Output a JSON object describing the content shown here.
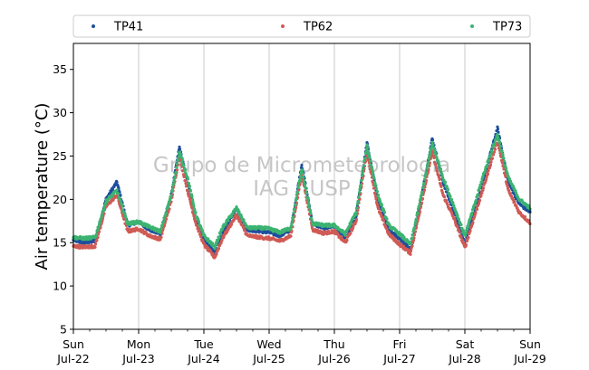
{
  "chart_data": {
    "type": "scatter",
    "title": "",
    "xlabel": "",
    "ylabel": "Air temperature (°C)",
    "ylim": [
      5,
      38
    ],
    "xlim": [
      "2018-07-22",
      "2018-07-29"
    ],
    "yticks": [
      5,
      10,
      15,
      20,
      25,
      30,
      35
    ],
    "xticks": [
      {
        "day": "Sun",
        "date": "Jul-22"
      },
      {
        "day": "Mon",
        "date": "Jul-23"
      },
      {
        "day": "Tue",
        "date": "Jul-24"
      },
      {
        "day": "Wed",
        "date": "Jul-25"
      },
      {
        "day": "Thu",
        "date": "Jul-26"
      },
      {
        "day": "Fri",
        "date": "Jul-27"
      },
      {
        "day": "Sat",
        "date": "Jul-28"
      },
      {
        "day": "Sun",
        "date": "Jul-29"
      }
    ],
    "grid": "vertical",
    "legend": "top",
    "watermark": [
      "Grupo de Micrometeorologia",
      "IAG / USP"
    ],
    "series": [
      {
        "name": "TP41",
        "color": "#1f4e9c",
        "x": [
          "2018-07-22 00:00",
          "2018-07-22 04:00",
          "2018-07-22 08:00",
          "2018-07-22 12:00",
          "2018-07-22 16:00",
          "2018-07-22 20:00",
          "2018-07-23 00:00",
          "2018-07-23 04:00",
          "2018-07-23 08:00",
          "2018-07-23 12:00",
          "2018-07-23 15:00",
          "2018-07-23 18:00",
          "2018-07-23 21:00",
          "2018-07-24 00:00",
          "2018-07-24 04:00",
          "2018-07-24 07:00",
          "2018-07-24 12:00",
          "2018-07-24 16:00",
          "2018-07-24 21:00",
          "2018-07-25 00:00",
          "2018-07-25 04:00",
          "2018-07-25 08:00",
          "2018-07-25 12:00",
          "2018-07-25 16:00",
          "2018-07-25 20:00",
          "2018-07-26 00:00",
          "2018-07-26 04:00",
          "2018-07-26 08:00",
          "2018-07-26 12:00",
          "2018-07-26 16:00",
          "2018-07-26 20:00",
          "2018-07-27 00:00",
          "2018-07-27 04:00",
          "2018-07-27 07:00",
          "2018-07-27 12:00",
          "2018-07-27 16:00",
          "2018-07-27 20:00",
          "2018-07-28 00:00",
          "2018-07-28 04:00",
          "2018-07-28 07:00",
          "2018-07-28 12:00",
          "2018-07-28 16:00",
          "2018-07-28 20:00",
          "2018-07-29 00:00"
        ],
        "y": [
          15.3,
          15.0,
          15.2,
          20.0,
          22.0,
          17.0,
          17.4,
          16.5,
          16.0,
          20.5,
          26.0,
          22.0,
          18.0,
          15.5,
          13.8,
          16.2,
          19.0,
          16.5,
          16.3,
          16.2,
          15.8,
          16.5,
          24.0,
          17.2,
          16.7,
          16.9,
          15.5,
          18.0,
          26.5,
          20.0,
          16.5,
          15.5,
          14.2,
          18.5,
          27.0,
          22.0,
          18.5,
          14.8,
          19.0,
          22.5,
          28.2,
          22.0,
          19.5,
          18.5
        ]
      },
      {
        "name": "TP62",
        "color": "#d05a55",
        "x": [
          "2018-07-22 00:00",
          "2018-07-22 04:00",
          "2018-07-22 08:00",
          "2018-07-22 12:00",
          "2018-07-22 16:00",
          "2018-07-22 20:00",
          "2018-07-23 00:00",
          "2018-07-23 04:00",
          "2018-07-23 08:00",
          "2018-07-23 12:00",
          "2018-07-23 15:00",
          "2018-07-23 18:00",
          "2018-07-23 21:00",
          "2018-07-24 00:00",
          "2018-07-24 04:00",
          "2018-07-24 07:00",
          "2018-07-24 12:00",
          "2018-07-24 16:00",
          "2018-07-24 21:00",
          "2018-07-25 00:00",
          "2018-07-25 04:00",
          "2018-07-25 08:00",
          "2018-07-25 12:00",
          "2018-07-25 16:00",
          "2018-07-25 20:00",
          "2018-07-26 00:00",
          "2018-07-26 04:00",
          "2018-07-26 08:00",
          "2018-07-26 12:00",
          "2018-07-26 16:00",
          "2018-07-26 20:00",
          "2018-07-27 00:00",
          "2018-07-27 04:00",
          "2018-07-27 07:00",
          "2018-07-27 12:00",
          "2018-07-27 16:00",
          "2018-07-27 20:00",
          "2018-07-28 00:00",
          "2018-07-28 04:00",
          "2018-07-28 07:00",
          "2018-07-28 12:00",
          "2018-07-28 16:00",
          "2018-07-28 20:00",
          "2018-07-29 00:00"
        ],
        "y": [
          14.6,
          14.5,
          14.6,
          19.2,
          20.5,
          16.3,
          16.6,
          15.8,
          15.4,
          19.8,
          25.0,
          21.0,
          17.3,
          14.8,
          13.3,
          15.6,
          18.2,
          15.8,
          15.6,
          15.5,
          15.2,
          15.8,
          23.0,
          16.5,
          16.1,
          16.3,
          15.0,
          17.5,
          25.5,
          19.0,
          16.0,
          14.8,
          13.8,
          18.0,
          25.5,
          20.5,
          17.8,
          14.4,
          18.5,
          21.5,
          26.8,
          21.0,
          18.5,
          17.3
        ]
      },
      {
        "name": "TP73",
        "color": "#3cb371",
        "x": [
          "2018-07-22 00:00",
          "2018-07-22 04:00",
          "2018-07-22 08:00",
          "2018-07-22 12:00",
          "2018-07-22 16:00",
          "2018-07-22 20:00",
          "2018-07-23 00:00",
          "2018-07-23 04:00",
          "2018-07-23 08:00",
          "2018-07-23 12:00",
          "2018-07-23 15:00",
          "2018-07-23 18:00",
          "2018-07-23 21:00",
          "2018-07-24 00:00",
          "2018-07-24 04:00",
          "2018-07-24 07:00",
          "2018-07-24 12:00",
          "2018-07-24 16:00",
          "2018-07-24 21:00",
          "2018-07-25 00:00",
          "2018-07-25 04:00",
          "2018-07-25 08:00",
          "2018-07-25 12:00",
          "2018-07-25 16:00",
          "2018-07-25 20:00",
          "2018-07-26 00:00",
          "2018-07-26 04:00",
          "2018-07-26 08:00",
          "2018-07-26 12:00",
          "2018-07-26 16:00",
          "2018-07-26 20:00",
          "2018-07-27 00:00",
          "2018-07-27 04:00",
          "2018-07-27 07:00",
          "2018-07-27 12:00",
          "2018-07-27 16:00",
          "2018-07-27 20:00",
          "2018-07-28 00:00",
          "2018-07-28 04:00",
          "2018-07-28 07:00",
          "2018-07-28 12:00",
          "2018-07-28 16:00",
          "2018-07-28 20:00",
          "2018-07-29 00:00"
        ],
        "y": [
          15.6,
          15.5,
          15.6,
          19.8,
          21.0,
          17.2,
          17.4,
          16.8,
          16.3,
          20.5,
          25.5,
          22.5,
          18.3,
          15.8,
          14.5,
          16.8,
          19.0,
          16.7,
          16.7,
          16.6,
          16.2,
          16.7,
          23.5,
          17.2,
          17.0,
          17.0,
          16.0,
          18.5,
          26.2,
          20.5,
          17.0,
          16.0,
          14.8,
          19.0,
          26.5,
          22.5,
          19.2,
          15.8,
          19.8,
          23.0,
          27.5,
          22.5,
          20.0,
          19.0
        ]
      }
    ]
  }
}
